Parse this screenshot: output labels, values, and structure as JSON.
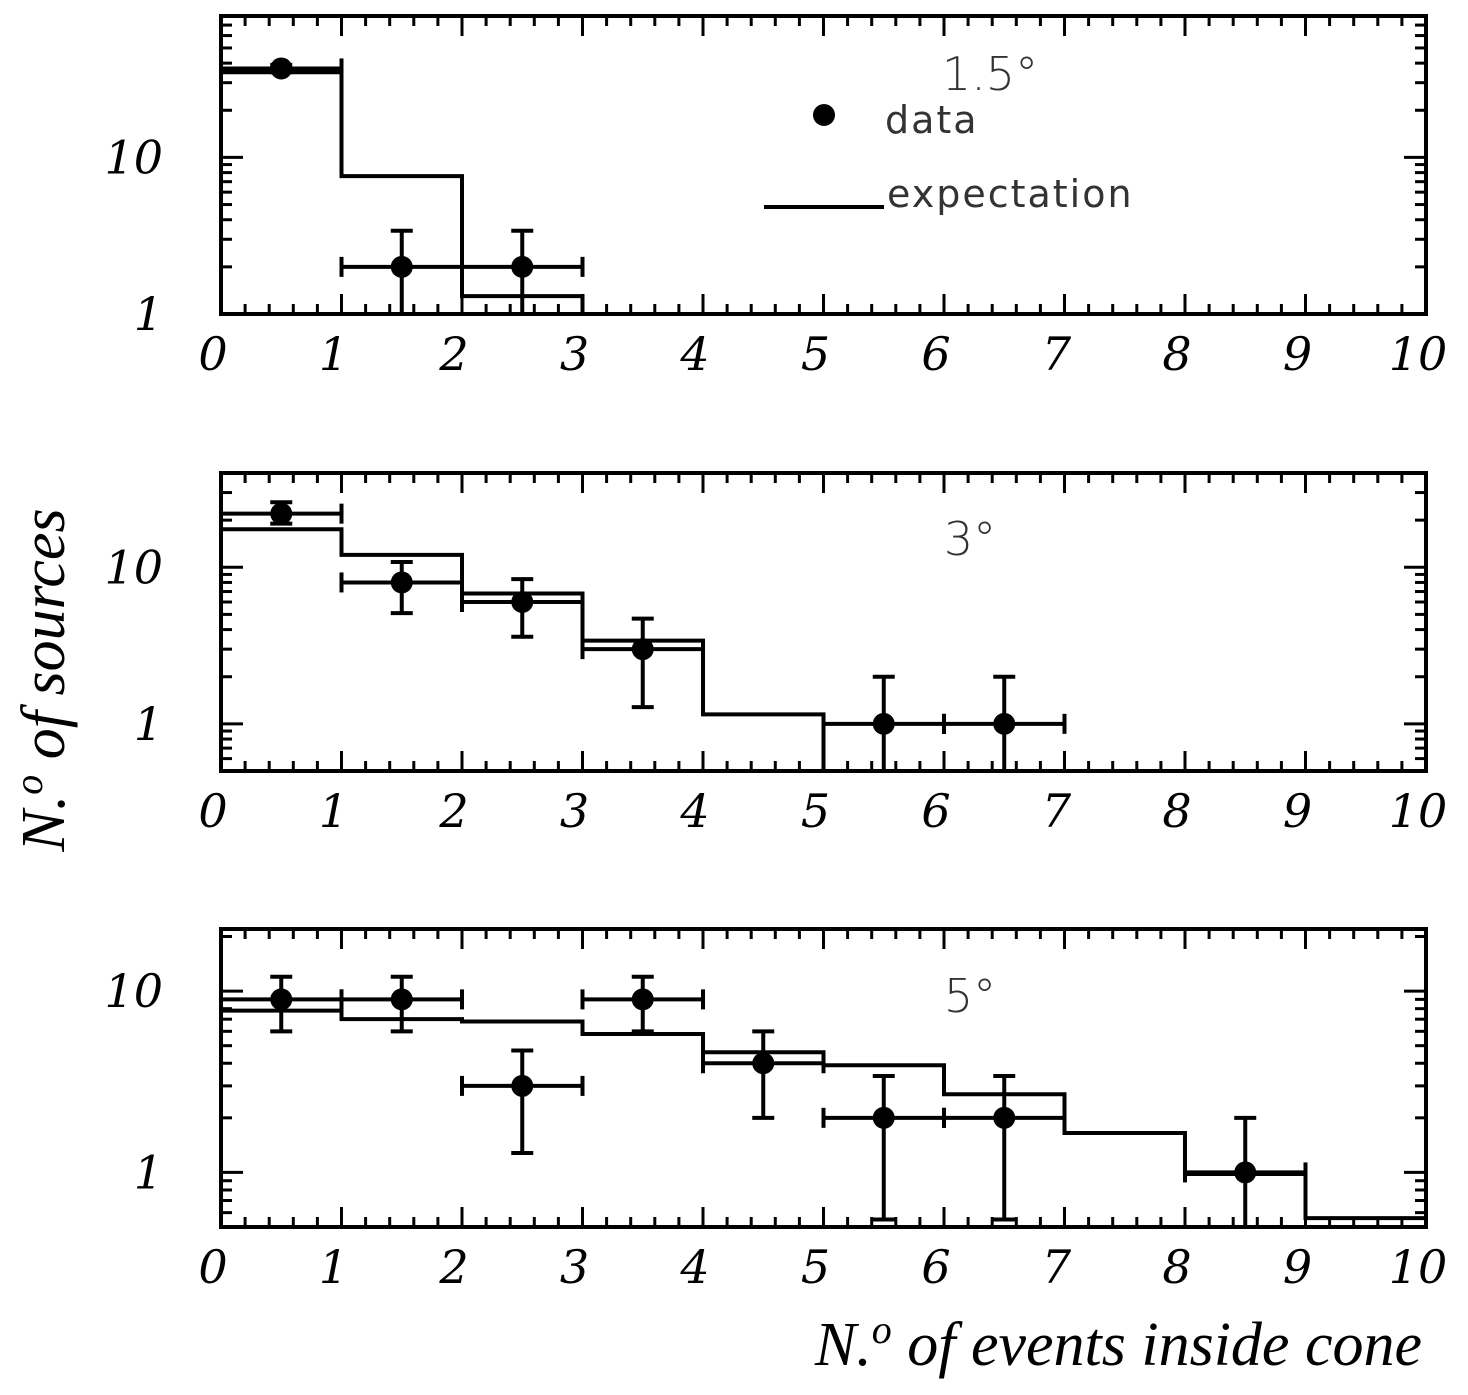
{
  "chart_data": [
    {
      "type": "histogram-with-points",
      "panel": "top",
      "cone_label": "1.5°",
      "x_scale": "linear",
      "y_scale": "log",
      "xlim": [
        0,
        10
      ],
      "ylim": [
        1,
        80
      ],
      "x_ticks": [
        "0",
        "1",
        "2",
        "3",
        "4",
        "5",
        "6",
        "7",
        "8",
        "9",
        "10"
      ],
      "y_ticks": [
        {
          "value": 1,
          "label": "1"
        },
        {
          "value": 10,
          "label": "10"
        }
      ],
      "expectation": {
        "name": "expectation",
        "bins": [
          [
            0,
            1,
            35
          ],
          [
            1,
            2,
            7.6
          ],
          [
            2,
            3,
            1.3
          ]
        ]
      },
      "data": {
        "name": "data",
        "points": [
          {
            "x": 0.5,
            "y": 37,
            "ylow": 35,
            "yhigh": 39,
            "xlow": 0,
            "xhigh": 1
          },
          {
            "x": 1.5,
            "y": 2,
            "ylow": 1.0,
            "yhigh": 3.4,
            "xlow": 1,
            "xhigh": 2
          },
          {
            "x": 2.5,
            "y": 2,
            "ylow": 1.0,
            "yhigh": 3.4,
            "xlow": 2,
            "xhigh": 3
          }
        ]
      },
      "legend": {
        "data_label": "data",
        "expectation_label": "expectation",
        "position": "top-right"
      }
    },
    {
      "type": "histogram-with-points",
      "panel": "middle",
      "cone_label": "3°",
      "x_scale": "linear",
      "y_scale": "log",
      "xlim": [
        0,
        10
      ],
      "ylim": [
        0.5,
        40
      ],
      "x_ticks": [
        "0",
        "1",
        "2",
        "3",
        "4",
        "5",
        "6",
        "7",
        "8",
        "9",
        "10"
      ],
      "y_ticks": [
        {
          "value": 1,
          "label": "1"
        },
        {
          "value": 10,
          "label": "10"
        }
      ],
      "expectation": {
        "name": "expectation",
        "bins": [
          [
            0,
            1,
            17.5
          ],
          [
            1,
            2,
            12
          ],
          [
            2,
            3,
            6.8
          ],
          [
            3,
            4,
            3.4
          ],
          [
            4,
            5,
            1.15
          ],
          [
            5,
            6,
            0.45
          ]
        ]
      },
      "data": {
        "name": "data",
        "points": [
          {
            "x": 0.5,
            "y": 22,
            "ylow": 19,
            "yhigh": 26,
            "xlow": 0,
            "xhigh": 1
          },
          {
            "x": 1.5,
            "y": 8,
            "ylow": 5.1,
            "yhigh": 10.8,
            "xlow": 1,
            "xhigh": 2
          },
          {
            "x": 2.5,
            "y": 6,
            "ylow": 3.6,
            "yhigh": 8.4,
            "xlow": 2,
            "xhigh": 3
          },
          {
            "x": 3.5,
            "y": 3,
            "ylow": 1.28,
            "yhigh": 4.7,
            "xlow": 3,
            "xhigh": 4
          },
          {
            "x": 5.5,
            "y": 1,
            "ylow": 0.5,
            "yhigh": 2,
            "xlow": 5,
            "xhigh": 6
          },
          {
            "x": 6.5,
            "y": 1,
            "ylow": 0.5,
            "yhigh": 2,
            "xlow": 6,
            "xhigh": 7
          }
        ]
      }
    },
    {
      "type": "histogram-with-points",
      "panel": "bottom",
      "cone_label": "5°",
      "x_scale": "linear",
      "y_scale": "log",
      "xlim": [
        0,
        10
      ],
      "ylim": [
        0.5,
        22
      ],
      "x_ticks": [
        "0",
        "1",
        "2",
        "3",
        "4",
        "5",
        "6",
        "7",
        "8",
        "9",
        "10"
      ],
      "y_ticks": [
        {
          "value": 1,
          "label": "1"
        },
        {
          "value": 10,
          "label": "10"
        }
      ],
      "expectation": {
        "name": "expectation",
        "bins": [
          [
            0,
            1,
            7.8
          ],
          [
            1,
            2,
            7.0
          ],
          [
            2,
            3,
            6.8
          ],
          [
            3,
            4,
            5.8
          ],
          [
            4,
            5,
            4.6
          ],
          [
            5,
            6,
            3.9
          ],
          [
            6,
            7,
            2.7
          ],
          [
            7,
            8,
            1.65
          ],
          [
            8,
            9,
            0.98
          ],
          [
            9,
            10,
            0.56
          ]
        ]
      },
      "data": {
        "name": "data",
        "points": [
          {
            "x": 0.5,
            "y": 9,
            "ylow": 6,
            "yhigh": 12,
            "xlow": 0,
            "xhigh": 1
          },
          {
            "x": 1.5,
            "y": 9,
            "ylow": 6,
            "yhigh": 12,
            "xlow": 1,
            "xhigh": 2
          },
          {
            "x": 2.5,
            "y": 3,
            "ylow": 1.28,
            "yhigh": 4.7,
            "xlow": 2,
            "xhigh": 3
          },
          {
            "x": 3.5,
            "y": 9,
            "ylow": 6,
            "yhigh": 12,
            "xlow": 3,
            "xhigh": 4
          },
          {
            "x": 4.5,
            "y": 4,
            "ylow": 2,
            "yhigh": 6,
            "xlow": 4,
            "xhigh": 5
          },
          {
            "x": 5.5,
            "y": 2,
            "ylow": 0.55,
            "yhigh": 3.4,
            "xlow": 5,
            "xhigh": 6
          },
          {
            "x": 6.5,
            "y": 2,
            "ylow": 0.55,
            "yhigh": 3.4,
            "xlow": 6,
            "xhigh": 7
          },
          {
            "x": 8.5,
            "y": 1,
            "ylow": 0.5,
            "yhigh": 2,
            "xlow": 8,
            "xhigh": 9
          }
        ]
      }
    }
  ],
  "ylabel": "N.o of sources",
  "ylabel_main": "N.",
  "ylabel_sup": "o",
  "ylabel_rest": " of sources",
  "xlabel_main": "N.",
  "xlabel_sup": "o",
  "xlabel_rest": " of events inside cone"
}
